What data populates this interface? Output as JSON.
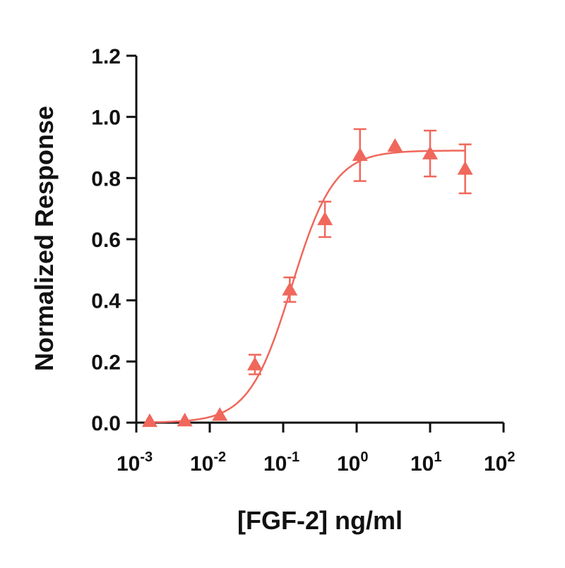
{
  "chart_data": {
    "type": "scatter",
    "title": "",
    "xlabel": "[FGF-2] ng/ml",
    "ylabel": "Normalized Response",
    "xscale": "log",
    "xlim": [
      0.001,
      100
    ],
    "ylim": [
      0,
      1.2
    ],
    "xticks": [
      {
        "base": "10",
        "exp": "-3",
        "value": 0.001
      },
      {
        "base": "10",
        "exp": "-2",
        "value": 0.01
      },
      {
        "base": "10",
        "exp": "-1",
        "value": 0.1
      },
      {
        "base": "10",
        "exp": "0",
        "value": 1
      },
      {
        "base": "10",
        "exp": "1",
        "value": 10
      },
      {
        "base": "10",
        "exp": "2",
        "value": 100
      }
    ],
    "yticks": [
      "0.0",
      "0.2",
      "0.4",
      "0.6",
      "0.8",
      "1.0",
      "1.2"
    ],
    "grid": false,
    "color": "#f0675c",
    "marker": "triangle",
    "points": [
      {
        "x": 0.00152,
        "y": 0.005,
        "err": 0
      },
      {
        "x": 0.00457,
        "y": 0.007,
        "err": 0
      },
      {
        "x": 0.0137,
        "y": 0.025,
        "err": 0
      },
      {
        "x": 0.0412,
        "y": 0.19,
        "err": 0.032
      },
      {
        "x": 0.123,
        "y": 0.435,
        "err": 0.04
      },
      {
        "x": 0.37,
        "y": 0.665,
        "err": 0.058
      },
      {
        "x": 1.11,
        "y": 0.875,
        "err": 0.085
      },
      {
        "x": 3.33,
        "y": 0.905,
        "err": 0
      },
      {
        "x": 10,
        "y": 0.88,
        "err": 0.075
      },
      {
        "x": 30,
        "y": 0.83,
        "err": 0.08
      }
    ],
    "fit": {
      "model": "4PL",
      "bottom": 0.0,
      "top": 0.89,
      "ec50": 0.13,
      "hill": 1.5
    }
  }
}
